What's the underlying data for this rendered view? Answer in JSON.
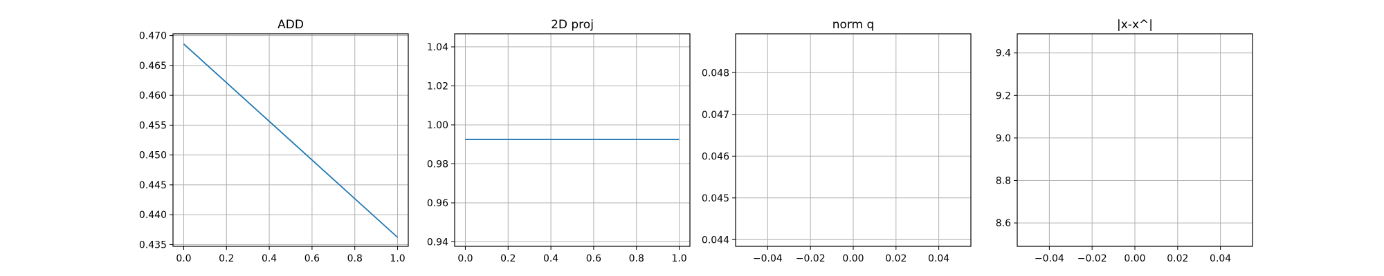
{
  "chart_data": [
    {
      "type": "line",
      "title": "ADD",
      "xlabel": "",
      "ylabel": "",
      "grid": true,
      "xlim": [
        -0.05,
        1.05
      ],
      "ylim": [
        0.4347,
        0.4703
      ],
      "xticks": [
        0.0,
        0.2,
        0.4,
        0.6,
        0.8,
        1.0
      ],
      "xtick_labels": [
        "0.0",
        "0.2",
        "0.4",
        "0.6",
        "0.8",
        "1.0"
      ],
      "yticks": [
        0.435,
        0.44,
        0.445,
        0.45,
        0.455,
        0.46,
        0.465,
        0.47
      ],
      "ytick_labels": [
        "0.435",
        "0.440",
        "0.445",
        "0.450",
        "0.455",
        "0.460",
        "0.465",
        "0.470"
      ],
      "series": [
        {
          "x": [
            0.0,
            1.0
          ],
          "y": [
            0.4686,
            0.4362
          ],
          "color": "#1f77b4"
        }
      ]
    },
    {
      "type": "line",
      "title": "2D proj",
      "xlabel": "",
      "ylabel": "",
      "grid": true,
      "xlim": [
        -0.05,
        1.05
      ],
      "ylim": [
        0.9377,
        1.0467
      ],
      "xticks": [
        0.0,
        0.2,
        0.4,
        0.6,
        0.8,
        1.0
      ],
      "xtick_labels": [
        "0.0",
        "0.2",
        "0.4",
        "0.6",
        "0.8",
        "1.0"
      ],
      "yticks": [
        0.94,
        0.96,
        0.98,
        1.0,
        1.02,
        1.04
      ],
      "ytick_labels": [
        "0.94",
        "0.96",
        "0.98",
        "1.00",
        "1.02",
        "1.04"
      ],
      "series": [
        {
          "x": [
            0.0,
            1.0
          ],
          "y": [
            0.9925,
            0.9925
          ],
          "color": "#1f77b4"
        }
      ]
    },
    {
      "type": "line",
      "title": "norm q",
      "xlabel": "",
      "ylabel": "",
      "grid": true,
      "xlim": [
        -0.055,
        0.055
      ],
      "ylim": [
        0.04384,
        0.04893
      ],
      "xticks": [
        -0.04,
        -0.02,
        0.0,
        0.02,
        0.04
      ],
      "xtick_labels": [
        "−0.04",
        "−0.02",
        "0.00",
        "0.02",
        "0.04"
      ],
      "yticks": [
        0.044,
        0.045,
        0.046,
        0.047,
        0.048
      ],
      "ytick_labels": [
        "0.044",
        "0.045",
        "0.046",
        "0.047",
        "0.048"
      ],
      "series": []
    },
    {
      "type": "line",
      "title": "|x-x^|",
      "xlabel": "",
      "ylabel": "",
      "grid": true,
      "xlim": [
        -0.055,
        0.055
      ],
      "ylim": [
        8.49,
        9.49
      ],
      "xticks": [
        -0.04,
        -0.02,
        0.0,
        0.02,
        0.04
      ],
      "xtick_labels": [
        "−0.04",
        "−0.02",
        "0.00",
        "0.02",
        "0.04"
      ],
      "yticks": [
        8.6,
        8.8,
        9.0,
        9.2,
        9.4
      ],
      "ytick_labels": [
        "8.6",
        "8.8",
        "9.0",
        "9.2",
        "9.4"
      ],
      "series": []
    }
  ]
}
